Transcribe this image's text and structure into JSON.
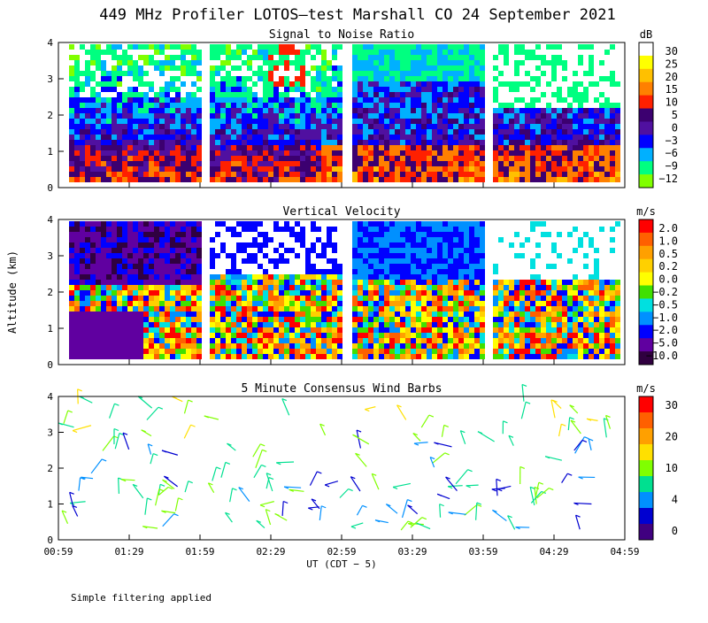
{
  "header": {
    "title": "449 MHz Profiler LOTOS—test Marshall CO 24 September 2021"
  },
  "footer": {
    "note": "Simple filtering applied"
  },
  "chart_data": [
    {
      "type": "heatmap",
      "title": "Signal to Noise Ratio",
      "ylabel": "",
      "ylim": [
        0,
        4
      ],
      "yticks": [
        "0",
        "1",
        "2",
        "3",
        "4"
      ],
      "colorbar": {
        "unit": "dB",
        "labels": [
          "30",
          "25",
          "20",
          "15",
          "10",
          "5",
          "0",
          "−3",
          "−6",
          "−9",
          "−12"
        ],
        "colors": [
          "#ffffff",
          "#ffff00",
          "#ffc000",
          "#ff8000",
          "#ff2000",
          "#3c0070",
          "#5010a0",
          "#0000ff",
          "#00b0ff",
          "#00ff80",
          "#80ff00"
        ]
      }
    },
    {
      "type": "heatmap",
      "title": "Vertical Velocity",
      "ylabel": "Altitude (km)",
      "ylim": [
        0,
        4
      ],
      "yticks": [
        "0",
        "1",
        "2",
        "3",
        "4"
      ],
      "colorbar": {
        "unit": "m/s",
        "labels": [
          "2.0",
          "1.0",
          "0.5",
          "0.2",
          "0.0",
          "−0.2",
          "−0.5",
          "−1.0",
          "−2.0",
          "−5.0",
          "−10.0"
        ],
        "colors": [
          "#ff0000",
          "#ff6000",
          "#ffa000",
          "#ffd000",
          "#ffff00",
          "#40e000",
          "#00e0e0",
          "#0090ff",
          "#0000ff",
          "#6000a0",
          "#300040"
        ]
      }
    },
    {
      "type": "scatter",
      "title": "5 Minute Consensus Wind Barbs",
      "ylabel": "",
      "ylim": [
        0,
        4
      ],
      "yticks": [
        "0",
        "1",
        "2",
        "3",
        "4"
      ],
      "xticks": [
        "00:59",
        "01:29",
        "01:59",
        "02:29",
        "02:59",
        "03:29",
        "03:59",
        "04:29",
        "04:59"
      ],
      "xlabel": "UT  (CDT − 5)",
      "colorbar": {
        "unit": "m/s",
        "labels": [
          "30",
          "20",
          "10",
          "4",
          "0"
        ],
        "colors": [
          "#ff0000",
          "#ff6000",
          "#ffa000",
          "#ffe000",
          "#80ff00",
          "#00e090",
          "#0090ff",
          "#0000d0",
          "#400080"
        ]
      }
    }
  ]
}
